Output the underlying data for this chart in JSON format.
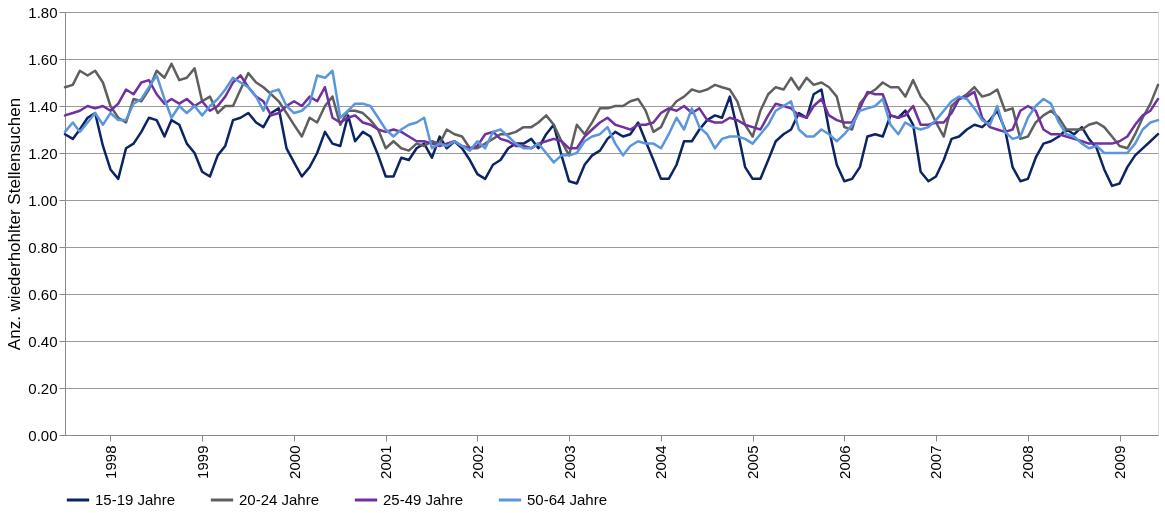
{
  "chart_data": {
    "type": "line",
    "ylabel": "Anz. wiederhohlter Stellensuchen",
    "x": [
      "1998-01",
      "1998-02",
      "1998-03",
      "1998-04",
      "1998-05",
      "1998-06",
      "1998-07",
      "1998-08",
      "1998-09",
      "1998-10",
      "1998-11",
      "1998-12",
      "1999-01",
      "1999-02",
      "1999-03",
      "1999-04",
      "1999-05",
      "1999-06",
      "1999-07",
      "1999-08",
      "1999-09",
      "1999-10",
      "1999-11",
      "1999-12",
      "2000-01",
      "2000-02",
      "2000-03",
      "2000-04",
      "2000-05",
      "2000-06",
      "2000-07",
      "2000-08",
      "2000-09",
      "2000-10",
      "2000-11",
      "2000-12",
      "2001-01",
      "2001-02",
      "2001-03",
      "2001-04",
      "2001-05",
      "2001-06",
      "2001-07",
      "2001-08",
      "2001-09",
      "2001-10",
      "2001-11",
      "2001-12",
      "2002-01",
      "2002-02",
      "2002-03",
      "2002-04",
      "2002-05",
      "2002-06",
      "2002-07",
      "2002-08",
      "2002-09",
      "2002-10",
      "2002-11",
      "2002-12",
      "2003-01",
      "2003-02",
      "2003-03",
      "2003-04",
      "2003-05",
      "2003-06",
      "2003-07",
      "2003-08",
      "2003-09",
      "2003-10",
      "2003-11",
      "2003-12",
      "2004-01",
      "2004-02",
      "2004-03",
      "2004-04",
      "2004-05",
      "2004-06",
      "2004-07",
      "2004-08",
      "2004-09",
      "2004-10",
      "2004-11",
      "2004-12",
      "2005-01",
      "2005-02",
      "2005-03",
      "2005-04",
      "2005-05",
      "2005-06",
      "2005-07",
      "2005-08",
      "2005-09",
      "2005-10",
      "2005-11",
      "2005-12",
      "2006-01",
      "2006-02",
      "2006-03",
      "2006-04",
      "2006-05",
      "2006-06",
      "2006-07",
      "2006-08",
      "2006-09",
      "2006-10",
      "2006-11",
      "2006-12",
      "2007-01",
      "2007-02",
      "2007-03",
      "2007-04",
      "2007-05",
      "2007-06",
      "2007-07",
      "2007-08",
      "2007-09",
      "2007-10",
      "2007-11",
      "2007-12",
      "2008-01",
      "2008-02",
      "2008-03",
      "2008-04",
      "2008-05",
      "2008-06",
      "2008-07",
      "2008-08",
      "2008-09",
      "2008-10",
      "2008-11",
      "2008-12",
      "2009-01",
      "2009-02",
      "2009-03",
      "2009-04",
      "2009-05",
      "2009-06",
      "2009-07",
      "2009-08",
      "2009-09",
      "2009-10",
      "2009-11",
      "2009-12"
    ],
    "series": [
      {
        "name": "15-19 Jahre",
        "color": "#0b2463",
        "values": [
          1.28,
          1.26,
          1.3,
          1.35,
          1.37,
          1.23,
          1.13,
          1.09,
          1.22,
          1.24,
          1.29,
          1.35,
          1.34,
          1.27,
          1.34,
          1.32,
          1.24,
          1.2,
          1.12,
          1.1,
          1.19,
          1.23,
          1.34,
          1.35,
          1.37,
          1.33,
          1.31,
          1.37,
          1.39,
          1.22,
          1.16,
          1.1,
          1.14,
          1.2,
          1.29,
          1.24,
          1.23,
          1.36,
          1.25,
          1.29,
          1.27,
          1.19,
          1.1,
          1.1,
          1.18,
          1.17,
          1.22,
          1.24,
          1.18,
          1.27,
          1.22,
          1.25,
          1.22,
          1.17,
          1.11,
          1.09,
          1.15,
          1.17,
          1.22,
          1.24,
          1.24,
          1.26,
          1.22,
          1.28,
          1.32,
          1.19,
          1.08,
          1.07,
          1.15,
          1.19,
          1.21,
          1.26,
          1.29,
          1.27,
          1.28,
          1.33,
          1.25,
          1.17,
          1.09,
          1.09,
          1.15,
          1.25,
          1.25,
          1.3,
          1.34,
          1.36,
          1.35,
          1.44,
          1.3,
          1.14,
          1.09,
          1.09,
          1.17,
          1.25,
          1.28,
          1.3,
          1.37,
          1.35,
          1.45,
          1.47,
          1.3,
          1.15,
          1.08,
          1.09,
          1.14,
          1.27,
          1.28,
          1.27,
          1.36,
          1.35,
          1.38,
          1.32,
          1.12,
          1.08,
          1.1,
          1.17,
          1.26,
          1.27,
          1.3,
          1.32,
          1.31,
          1.34,
          1.38,
          1.3,
          1.14,
          1.08,
          1.09,
          1.18,
          1.24,
          1.25,
          1.27,
          1.3,
          1.28,
          1.31,
          1.26,
          1.22,
          1.13,
          1.06,
          1.07,
          1.14,
          1.19,
          1.22,
          1.25,
          1.28
        ]
      },
      {
        "name": "20-24 Jahre",
        "color": "#5f5f5f",
        "values": [
          1.48,
          1.49,
          1.55,
          1.53,
          1.55,
          1.5,
          1.4,
          1.35,
          1.33,
          1.43,
          1.42,
          1.47,
          1.55,
          1.52,
          1.58,
          1.51,
          1.52,
          1.56,
          1.42,
          1.44,
          1.37,
          1.4,
          1.4,
          1.47,
          1.54,
          1.5,
          1.48,
          1.45,
          1.42,
          1.37,
          1.32,
          1.27,
          1.35,
          1.33,
          1.4,
          1.44,
          1.32,
          1.38,
          1.38,
          1.37,
          1.34,
          1.3,
          1.22,
          1.25,
          1.22,
          1.21,
          1.24,
          1.23,
          1.25,
          1.24,
          1.3,
          1.28,
          1.27,
          1.22,
          1.22,
          1.24,
          1.26,
          1.28,
          1.28,
          1.29,
          1.31,
          1.31,
          1.33,
          1.36,
          1.32,
          1.25,
          1.19,
          1.32,
          1.28,
          1.33,
          1.39,
          1.39,
          1.4,
          1.4,
          1.42,
          1.43,
          1.38,
          1.29,
          1.31,
          1.38,
          1.42,
          1.44,
          1.47,
          1.46,
          1.47,
          1.49,
          1.48,
          1.47,
          1.42,
          1.32,
          1.27,
          1.38,
          1.45,
          1.48,
          1.47,
          1.52,
          1.47,
          1.52,
          1.49,
          1.5,
          1.48,
          1.44,
          1.31,
          1.3,
          1.41,
          1.45,
          1.47,
          1.5,
          1.48,
          1.48,
          1.44,
          1.51,
          1.44,
          1.4,
          1.33,
          1.27,
          1.4,
          1.43,
          1.45,
          1.48,
          1.44,
          1.45,
          1.47,
          1.38,
          1.39,
          1.26,
          1.27,
          1.33,
          1.36,
          1.38,
          1.35,
          1.3,
          1.3,
          1.3,
          1.32,
          1.33,
          1.31,
          1.27,
          1.23,
          1.22,
          1.28,
          1.35,
          1.41,
          1.49
        ]
      },
      {
        "name": "25-49 Jahre",
        "color": "#7030a0",
        "values": [
          1.36,
          1.37,
          1.38,
          1.4,
          1.39,
          1.4,
          1.38,
          1.41,
          1.47,
          1.45,
          1.5,
          1.51,
          1.45,
          1.41,
          1.43,
          1.41,
          1.43,
          1.4,
          1.42,
          1.38,
          1.4,
          1.44,
          1.5,
          1.53,
          1.48,
          1.44,
          1.42,
          1.36,
          1.37,
          1.4,
          1.42,
          1.4,
          1.44,
          1.42,
          1.48,
          1.35,
          1.33,
          1.35,
          1.36,
          1.33,
          1.32,
          1.3,
          1.29,
          1.3,
          1.29,
          1.27,
          1.25,
          1.25,
          1.24,
          1.23,
          1.24,
          1.25,
          1.23,
          1.22,
          1.23,
          1.28,
          1.29,
          1.26,
          1.25,
          1.23,
          1.23,
          1.22,
          1.24,
          1.25,
          1.26,
          1.25,
          1.22,
          1.22,
          1.27,
          1.3,
          1.33,
          1.35,
          1.32,
          1.31,
          1.3,
          1.32,
          1.32,
          1.33,
          1.37,
          1.39,
          1.38,
          1.4,
          1.37,
          1.39,
          1.34,
          1.33,
          1.33,
          1.35,
          1.34,
          1.32,
          1.31,
          1.3,
          1.36,
          1.41,
          1.4,
          1.39,
          1.36,
          1.35,
          1.4,
          1.43,
          1.36,
          1.34,
          1.33,
          1.33,
          1.39,
          1.46,
          1.45,
          1.45,
          1.36,
          1.35,
          1.36,
          1.4,
          1.32,
          1.32,
          1.33,
          1.33,
          1.37,
          1.43,
          1.44,
          1.46,
          1.35,
          1.31,
          1.3,
          1.29,
          1.3,
          1.38,
          1.4,
          1.38,
          1.3,
          1.28,
          1.28,
          1.27,
          1.26,
          1.25,
          1.24,
          1.24,
          1.24,
          1.24,
          1.25,
          1.27,
          1.32,
          1.36,
          1.38,
          1.43
        ]
      },
      {
        "name": "50-64 Jahre",
        "color": "#5a96dc",
        "values": [
          1.29,
          1.33,
          1.29,
          1.33,
          1.37,
          1.32,
          1.37,
          1.34,
          1.34,
          1.41,
          1.43,
          1.48,
          1.53,
          1.43,
          1.35,
          1.4,
          1.37,
          1.4,
          1.36,
          1.4,
          1.43,
          1.47,
          1.52,
          1.5,
          1.48,
          1.44,
          1.38,
          1.46,
          1.47,
          1.4,
          1.37,
          1.38,
          1.41,
          1.53,
          1.52,
          1.55,
          1.35,
          1.38,
          1.41,
          1.41,
          1.4,
          1.35,
          1.3,
          1.27,
          1.3,
          1.32,
          1.33,
          1.35,
          1.22,
          1.24,
          1.23,
          1.25,
          1.23,
          1.21,
          1.25,
          1.22,
          1.29,
          1.3,
          1.27,
          1.24,
          1.22,
          1.22,
          1.24,
          1.2,
          1.16,
          1.19,
          1.19,
          1.2,
          1.25,
          1.27,
          1.28,
          1.31,
          1.24,
          1.19,
          1.23,
          1.25,
          1.24,
          1.24,
          1.22,
          1.28,
          1.35,
          1.3,
          1.39,
          1.31,
          1.28,
          1.22,
          1.26,
          1.27,
          1.27,
          1.26,
          1.24,
          1.28,
          1.32,
          1.38,
          1.4,
          1.42,
          1.3,
          1.27,
          1.27,
          1.3,
          1.28,
          1.25,
          1.28,
          1.32,
          1.38,
          1.39,
          1.4,
          1.43,
          1.32,
          1.28,
          1.33,
          1.31,
          1.3,
          1.31,
          1.34,
          1.38,
          1.42,
          1.44,
          1.43,
          1.39,
          1.34,
          1.32,
          1.4,
          1.29,
          1.26,
          1.27,
          1.35,
          1.4,
          1.43,
          1.41,
          1.33,
          1.28,
          1.27,
          1.24,
          1.22,
          1.23,
          1.2,
          1.2,
          1.2,
          1.2,
          1.24,
          1.3,
          1.33,
          1.34
        ]
      }
    ],
    "xlim": [
      "1998-01",
      "2009-12"
    ],
    "xticks": [
      {
        "value": "1998-07",
        "label": "1998"
      },
      {
        "value": "1999-07",
        "label": "1999"
      },
      {
        "value": "2000-07",
        "label": "2000"
      },
      {
        "value": "2001-07",
        "label": "2001"
      },
      {
        "value": "2002-07",
        "label": "2002"
      },
      {
        "value": "2003-07",
        "label": "2003"
      },
      {
        "value": "2004-07",
        "label": "2004"
      },
      {
        "value": "2005-07",
        "label": "2005"
      },
      {
        "value": "2006-07",
        "label": "2006"
      },
      {
        "value": "2007-07",
        "label": "2007"
      },
      {
        "value": "2008-07",
        "label": "2008"
      },
      {
        "value": "2009-07",
        "label": "2009"
      }
    ],
    "ylim": [
      0,
      1.8
    ],
    "yticks": [
      {
        "value": 0,
        "label": "0.00"
      },
      {
        "value": 0.2,
        "label": "0.20"
      },
      {
        "value": 0.4,
        "label": "0.40"
      },
      {
        "value": 0.6,
        "label": "0.60"
      },
      {
        "value": 0.8,
        "label": "0.80"
      },
      {
        "value": 1.0,
        "label": "1.00"
      },
      {
        "value": 1.2,
        "label": "1.20"
      },
      {
        "value": 1.4,
        "label": "1.40"
      },
      {
        "value": 1.6,
        "label": "1.60"
      },
      {
        "value": 1.8,
        "label": "1.80"
      }
    ],
    "grid": "y",
    "legend": "bottom",
    "marker": "none",
    "line_style": "solid"
  }
}
